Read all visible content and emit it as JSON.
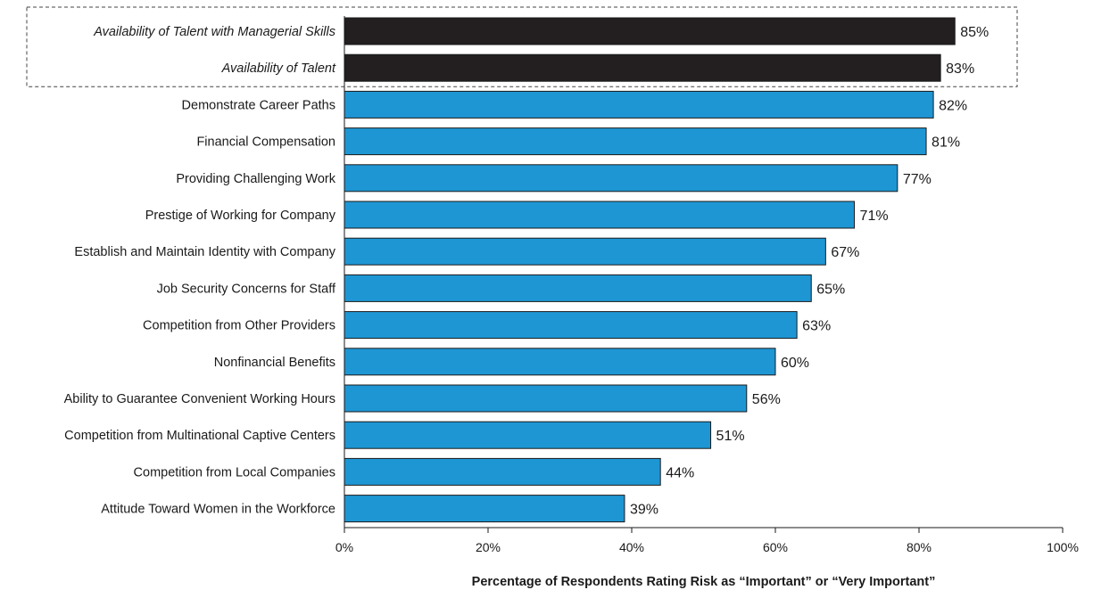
{
  "chart_data": {
    "type": "bar",
    "orientation": "horizontal",
    "categories": [
      "Availability of Talent with Managerial Skills",
      "Availability of Talent",
      "Demonstrate Career Paths",
      "Financial Compensation",
      "Providing Challenging Work",
      "Prestige of Working for Company",
      "Establish and Maintain Identity with Company",
      "Job Security Concerns for Staff",
      "Competition from Other Providers",
      "Nonfinancial Benefits",
      "Ability to Guarantee Convenient Working Hours",
      "Competition from Multinational Captive Centers",
      "Competition from Local Companies",
      "Attitude Toward Women in the Workforce"
    ],
    "values": [
      85,
      83,
      82,
      81,
      77,
      71,
      67,
      65,
      63,
      60,
      56,
      51,
      44,
      39
    ],
    "value_labels": [
      "85%",
      "83%",
      "82%",
      "81%",
      "77%",
      "71%",
      "67%",
      "65%",
      "63%",
      "60%",
      "56%",
      "51%",
      "44%",
      "39%"
    ],
    "highlighted": [
      true,
      true,
      false,
      false,
      false,
      false,
      false,
      false,
      false,
      false,
      false,
      false,
      false,
      false
    ],
    "colors": {
      "bar": "#1e96d4",
      "highlight_bar": "#231f20",
      "stroke": "#1a1a1a",
      "box": "#444444"
    },
    "xlabel": "Percentage of Respondents Rating Risk as “Important” or “Very Important”",
    "ylabel": "",
    "xlim": [
      0,
      100
    ],
    "xticks": [
      0,
      20,
      40,
      60,
      80,
      100
    ],
    "xtick_labels": [
      "0%",
      "20%",
      "40%",
      "60%",
      "80%",
      "100%"
    ],
    "grid": false,
    "highlight_box": "dashed"
  }
}
